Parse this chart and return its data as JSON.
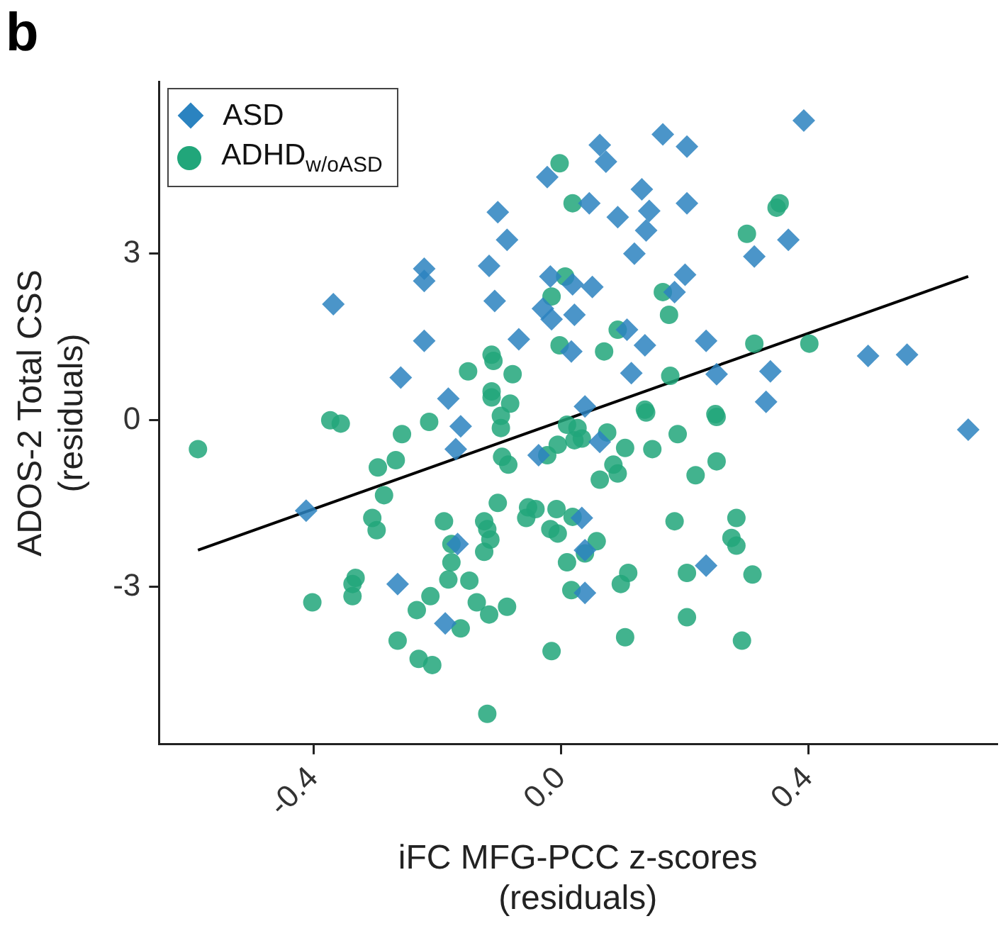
{
  "chart_data": {
    "type": "scatter",
    "title": "b",
    "xlabel": "iFC MFG-PCC z-scores\n(residuals)",
    "ylabel": "ADOS-2 Total CSS\n(residuals)",
    "xlim": [
      -0.65,
      0.705
    ],
    "ylim": [
      -5.84,
      6.1
    ],
    "xticks": [
      -0.4,
      {
        "value": 0,
        "label": "0.0"
      },
      0.4
    ],
    "yticks": [
      -3,
      0,
      3
    ],
    "grid": false,
    "legend": "top left",
    "series": [
      {
        "name": "ASD",
        "color": "#2b83c0",
        "marker": "diamond",
        "x": [
          0.393,
          0.063,
          0.073,
          0.165,
          0.204,
          0.131,
          0.046,
          0.092,
          0.143,
          0.138,
          0.204,
          0.119,
          0.368,
          0.313,
          0.201,
          0.184,
          0.051,
          0.019,
          0.022,
          0.107,
          0.136,
          0.017,
          0.235,
          0.252,
          0.339,
          0.114,
          0.332,
          0.497,
          0.56,
          0.039,
          -0.368,
          -0.221,
          -0.221,
          -0.102,
          -0.087,
          -0.116,
          -0.107,
          -0.017,
          -0.029,
          -0.015,
          -0.221,
          -0.068,
          -0.259,
          -0.182,
          -0.022,
          -0.162,
          -0.17,
          -0.412,
          -0.036,
          -0.167,
          -0.264,
          -0.187,
          0.063,
          0.659,
          0.034,
          0.039,
          0.235,
          0.039
        ],
        "values": [
          5.4,
          4.96,
          4.66,
          5.15,
          4.93,
          4.16,
          3.91,
          3.66,
          3.77,
          3.42,
          3.91,
          3.0,
          3.25,
          2.95,
          2.62,
          2.31,
          2.4,
          2.45,
          1.9,
          1.63,
          1.35,
          1.24,
          1.43,
          0.83,
          0.88,
          0.85,
          0.33,
          1.16,
          1.18,
          0.25,
          2.09,
          2.73,
          2.51,
          3.75,
          3.25,
          2.78,
          2.15,
          2.59,
          2.01,
          1.82,
          1.43,
          1.46,
          0.77,
          0.39,
          4.38,
          -0.11,
          -0.52,
          -1.63,
          -0.63,
          -2.23,
          -2.95,
          -3.66,
          -0.39,
          -0.17,
          -1.76,
          -2.34,
          -2.62,
          -3.11
        ]
      },
      {
        "name": "ADHD$_{w/oASD}$",
        "color": "#21a67a",
        "marker": "circle",
        "x": [
          -0.002,
          0.019,
          0.007,
          -0.015,
          -0.002,
          -0.112,
          -0.109,
          -0.15,
          -0.078,
          -0.112,
          -0.082,
          0.354,
          0.349,
          0.301,
          0.165,
          0.175,
          0.092,
          0.07,
          0.313,
          0.402,
          0.177,
          0.136,
          0.25,
          -0.587,
          -0.373,
          -0.356,
          -0.257,
          -0.213,
          -0.267,
          -0.296,
          -0.286,
          -0.305,
          -0.298,
          -0.402,
          -0.332,
          -0.337,
          -0.337,
          -0.211,
          -0.233,
          -0.189,
          -0.177,
          -0.177,
          -0.182,
          -0.148,
          -0.136,
          -0.116,
          -0.087,
          -0.162,
          -0.264,
          -0.23,
          -0.208,
          -0.119,
          -0.015,
          -0.102,
          -0.124,
          -0.119,
          -0.114,
          -0.124,
          -0.112,
          -0.097,
          -0.097,
          -0.095,
          -0.085,
          -0.005,
          -0.022,
          -0.053,
          -0.041,
          -0.056,
          -0.007,
          -0.017,
          -0.005,
          0.01,
          0.017,
          0.019,
          0.01,
          0.022,
          0.027,
          0.034,
          0.075,
          0.104,
          0.138,
          0.148,
          0.189,
          0.252,
          0.085,
          0.092,
          0.063,
          0.218,
          0.252,
          0.058,
          0.039,
          0.184,
          0.284,
          0.276,
          0.284,
          0.109,
          0.097,
          0.204,
          0.31,
          0.204,
          0.104,
          0.293
        ],
        "values": [
          4.63,
          3.91,
          2.59,
          2.23,
          1.35,
          1.18,
          1.07,
          0.88,
          0.83,
          0.52,
          0.3,
          3.91,
          3.83,
          3.36,
          2.31,
          1.9,
          1.63,
          1.24,
          1.38,
          1.38,
          0.8,
          0.19,
          0.11,
          -0.52,
          0.0,
          -0.06,
          -0.25,
          -0.03,
          -0.72,
          -0.85,
          -1.35,
          -1.76,
          -1.98,
          -3.28,
          -2.84,
          -2.95,
          -3.17,
          -3.17,
          -3.42,
          -1.82,
          -2.23,
          -2.56,
          -2.87,
          -2.89,
          -3.28,
          -3.5,
          -3.36,
          -3.75,
          -3.97,
          -4.3,
          -4.41,
          -5.29,
          -4.16,
          -1.49,
          -1.82,
          -1.96,
          -2.15,
          -2.37,
          0.41,
          0.08,
          -0.14,
          -0.66,
          -0.8,
          -0.44,
          -0.63,
          -1.57,
          -1.6,
          -1.76,
          -1.6,
          -1.96,
          -2.04,
          -2.56,
          -3.06,
          -1.74,
          -0.08,
          -0.36,
          -0.14,
          -0.33,
          -0.22,
          -0.5,
          0.14,
          -0.52,
          -0.25,
          0.06,
          -0.8,
          -0.96,
          -1.07,
          -0.99,
          -0.74,
          -2.18,
          -2.4,
          -1.82,
          -1.76,
          -2.12,
          -2.26,
          -2.75,
          -2.95,
          -2.75,
          -2.78,
          -3.55,
          -3.91,
          -3.97
        ]
      },
      {
        "type": "line",
        "color": "#000000",
        "marker": "none",
        "x": [
          -0.587,
          0.659
        ],
        "values": [
          -2.34,
          2.59
        ]
      }
    ]
  }
}
